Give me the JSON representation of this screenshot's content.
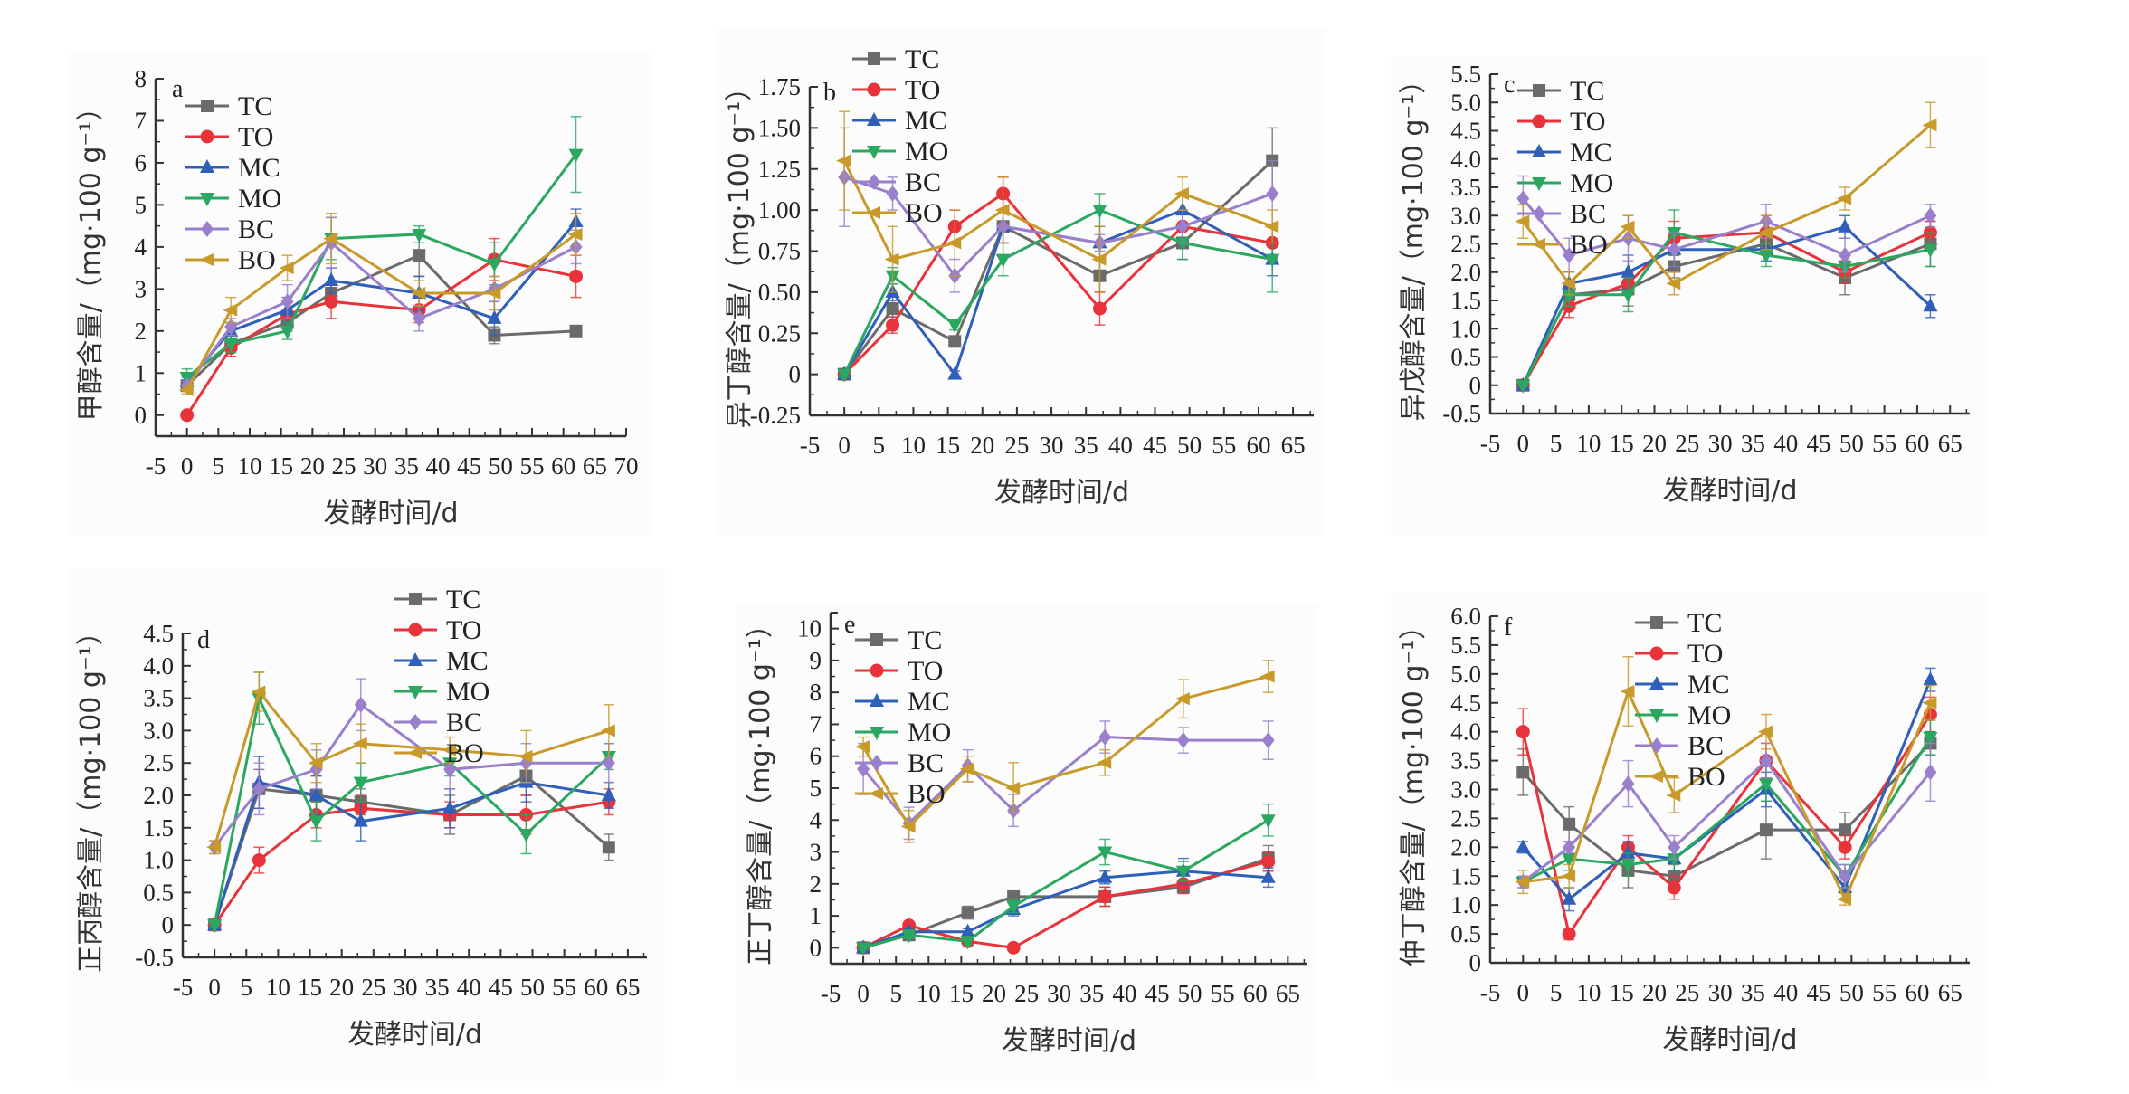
{
  "figure": {
    "x_label": "发酵时间/d",
    "series_names": [
      "TC",
      "TO",
      "MC",
      "MO",
      "BC",
      "BO"
    ],
    "series_colors": {
      "TC": "#6b6b6b",
      "TO": "#e8333a",
      "MC": "#2f5fb8",
      "MO": "#2aa860",
      "BC": "#9a7fcc",
      "BO": "#c89a2a"
    },
    "series_markers": {
      "TC": "square",
      "TO": "circle",
      "MC": "triangle-up",
      "MO": "triangle-down",
      "BC": "diamond",
      "BO": "triangle-left"
    }
  },
  "chart_data": [
    {
      "id": "a",
      "type": "line",
      "panel_label": "a",
      "ylabel": "甲醇含量/（mg·100 g⁻¹）",
      "xlabel": "发酵时间/d",
      "xlim": [
        -5,
        70
      ],
      "xticks": [
        -5,
        0,
        5,
        10,
        15,
        20,
        25,
        30,
        35,
        40,
        45,
        50,
        55,
        60,
        65,
        70
      ],
      "ylim": [
        -0.5,
        8
      ],
      "yticks": [
        0,
        1,
        2,
        3,
        4,
        5,
        6,
        7,
        8
      ],
      "ytick_labels": [
        "0",
        "1",
        "2",
        "3",
        "4",
        "5",
        "6",
        "7",
        "8"
      ],
      "legend_position": "top-left",
      "x": [
        0,
        7,
        16,
        23,
        37,
        49,
        62
      ],
      "series": [
        {
          "name": "TC",
          "values": [
            0.7,
            1.7,
            2.2,
            2.9,
            3.8,
            1.9,
            2.0
          ],
          "errors": [
            0.1,
            0.2,
            0.2,
            0.2,
            0.5,
            0.2,
            0.1
          ]
        },
        {
          "name": "TO",
          "values": [
            0.0,
            1.6,
            2.4,
            2.7,
            2.5,
            3.7,
            3.3
          ],
          "errors": [
            0.05,
            0.2,
            0.3,
            0.4,
            0.3,
            0.5,
            0.5
          ]
        },
        {
          "name": "MC",
          "values": [
            0.8,
            2.0,
            2.5,
            3.2,
            2.9,
            2.3,
            4.6
          ],
          "errors": [
            0.1,
            0.2,
            0.3,
            0.3,
            0.4,
            0.4,
            0.3
          ]
        },
        {
          "name": "MO",
          "values": [
            0.9,
            1.7,
            2.0,
            4.2,
            4.3,
            3.6,
            6.2
          ],
          "errors": [
            0.2,
            0.2,
            0.2,
            0.5,
            0.2,
            0.5,
            0.9
          ]
        },
        {
          "name": "BC",
          "values": [
            0.7,
            2.1,
            2.7,
            4.1,
            2.3,
            3.0,
            4.0
          ],
          "errors": [
            0.1,
            0.2,
            0.4,
            0.6,
            0.3,
            0.3,
            0.4
          ]
        },
        {
          "name": "BO",
          "values": [
            0.6,
            2.5,
            3.5,
            4.2,
            2.9,
            2.9,
            4.3
          ],
          "errors": [
            0.1,
            0.3,
            0.3,
            0.6,
            0.3,
            0.4,
            0.5
          ]
        }
      ]
    },
    {
      "id": "b",
      "type": "line",
      "panel_label": "b",
      "ylabel": "异丁醇含量/（mg·100 g⁻¹）",
      "xlabel": "发酵时间/d",
      "xlim": [
        -5,
        68
      ],
      "xticks": [
        -5,
        0,
        5,
        10,
        15,
        20,
        25,
        30,
        35,
        40,
        45,
        50,
        55,
        60,
        65
      ],
      "ylim": [
        -0.25,
        1.75
      ],
      "yticks": [
        -0.25,
        0,
        0.25,
        0.5,
        0.75,
        1.0,
        1.25,
        1.5,
        1.75
      ],
      "ytick_labels": [
        "-0.25",
        "0",
        "0.25",
        "0.50",
        "0.75",
        "1.00",
        "1.25",
        "1.50",
        "1.75"
      ],
      "legend_position": "top-center",
      "x": [
        0,
        7,
        16,
        23,
        37,
        49,
        62
      ],
      "series": [
        {
          "name": "TC",
          "values": [
            0.0,
            0.4,
            0.2,
            0.9,
            0.6,
            0.8,
            1.3
          ],
          "errors": [
            0.02,
            0.05,
            0.03,
            0.1,
            0.1,
            0.1,
            0.2
          ]
        },
        {
          "name": "TO",
          "values": [
            0.0,
            0.3,
            0.9,
            1.1,
            0.4,
            0.9,
            0.8
          ],
          "errors": [
            0.02,
            0.05,
            0.1,
            0.1,
            0.1,
            0.1,
            0.1
          ]
        },
        {
          "name": "MC",
          "values": [
            0.0,
            0.5,
            0.0,
            0.9,
            0.8,
            1.0,
            0.7
          ],
          "errors": [
            0.02,
            0.05,
            0.02,
            0.1,
            0.1,
            0.1,
            0.1
          ]
        },
        {
          "name": "MO",
          "values": [
            0.0,
            0.6,
            0.3,
            0.7,
            1.0,
            0.8,
            0.7
          ],
          "errors": [
            0.02,
            0.05,
            0.03,
            0.1,
            0.1,
            0.1,
            0.2
          ]
        },
        {
          "name": "BC",
          "values": [
            1.2,
            1.1,
            0.6,
            0.9,
            0.8,
            0.9,
            1.1
          ],
          "errors": [
            0.3,
            0.1,
            0.1,
            0.1,
            0.05,
            0.1,
            0.2
          ]
        },
        {
          "name": "BO",
          "values": [
            1.3,
            0.7,
            0.8,
            1.0,
            0.7,
            1.1,
            0.9
          ],
          "errors": [
            0.3,
            0.2,
            0.2,
            0.2,
            0.2,
            0.1,
            0.1
          ]
        }
      ]
    },
    {
      "id": "c",
      "type": "line",
      "panel_label": "c",
      "ylabel": "异戊醇含量/（mg·100 g⁻¹）",
      "xlabel": "发酵时间/d",
      "xlim": [
        -5,
        68
      ],
      "xticks": [
        -5,
        0,
        5,
        10,
        15,
        20,
        25,
        30,
        35,
        40,
        45,
        50,
        55,
        60,
        65
      ],
      "ylim": [
        -0.5,
        5.5
      ],
      "yticks": [
        -0.5,
        0,
        0.5,
        1.0,
        1.5,
        2.0,
        2.5,
        3.0,
        3.5,
        4.0,
        4.5,
        5.0,
        5.5
      ],
      "ytick_labels": [
        "-0.5",
        "0",
        "0.5",
        "1.0",
        "1.5",
        "2.0",
        "2.5",
        "3.0",
        "3.5",
        "4.0",
        "4.5",
        "5.0",
        "5.5"
      ],
      "legend_position": "top-left",
      "x": [
        0,
        7,
        16,
        23,
        37,
        49,
        62
      ],
      "series": [
        {
          "name": "TC",
          "values": [
            0.0,
            1.6,
            1.7,
            2.1,
            2.5,
            1.9,
            2.5
          ],
          "errors": [
            0.02,
            0.2,
            0.3,
            0.2,
            0.2,
            0.3,
            0.4
          ]
        },
        {
          "name": "TO",
          "values": [
            0.0,
            1.4,
            1.8,
            2.6,
            2.7,
            2.0,
            2.7
          ],
          "errors": [
            0.02,
            0.2,
            0.2,
            0.3,
            0.3,
            0.2,
            0.2
          ]
        },
        {
          "name": "MC",
          "values": [
            0.0,
            1.8,
            2.0,
            2.4,
            2.4,
            2.8,
            1.4
          ],
          "errors": [
            0.02,
            0.2,
            0.3,
            0.3,
            0.2,
            0.2,
            0.2
          ]
        },
        {
          "name": "MO",
          "values": [
            0.0,
            1.6,
            1.6,
            2.7,
            2.3,
            2.1,
            2.4
          ],
          "errors": [
            0.02,
            0.2,
            0.3,
            0.4,
            0.2,
            0.2,
            0.3
          ]
        },
        {
          "name": "BC",
          "values": [
            3.3,
            2.3,
            2.6,
            2.4,
            2.9,
            2.3,
            3.0
          ],
          "errors": [
            0.4,
            0.3,
            0.4,
            0.3,
            0.3,
            0.3,
            0.2
          ]
        },
        {
          "name": "BO",
          "values": [
            2.9,
            1.8,
            2.8,
            1.8,
            2.7,
            3.3,
            4.6
          ],
          "errors": [
            0.3,
            0.2,
            0.2,
            0.2,
            0.3,
            0.2,
            0.4
          ]
        }
      ]
    },
    {
      "id": "d",
      "type": "line",
      "panel_label": "d",
      "ylabel": "正丙醇含量/（mg·100 g⁻¹）",
      "xlabel": "发酵时间/d",
      "xlim": [
        -5,
        68
      ],
      "xticks": [
        -5,
        0,
        5,
        10,
        15,
        20,
        25,
        30,
        35,
        40,
        45,
        50,
        55,
        60,
        65
      ],
      "ylim": [
        -0.5,
        4.5
      ],
      "yticks": [
        -0.5,
        0,
        0.5,
        1.0,
        1.5,
        2.0,
        2.5,
        3.0,
        3.5,
        4.0,
        4.5
      ],
      "ytick_labels": [
        "-0.5",
        "0",
        "0.5",
        "1.0",
        "1.5",
        "2.0",
        "2.5",
        "3.0",
        "3.5",
        "4.0",
        "4.5"
      ],
      "legend_position": "top-right",
      "x": [
        0,
        7,
        16,
        23,
        37,
        49,
        62
      ],
      "series": [
        {
          "name": "TC",
          "values": [
            0.0,
            2.1,
            2.0,
            1.9,
            1.7,
            2.3,
            1.2
          ],
          "errors": [
            0.02,
            0.3,
            0.3,
            0.2,
            0.3,
            0.3,
            0.2
          ]
        },
        {
          "name": "TO",
          "values": [
            0.0,
            1.0,
            1.7,
            1.8,
            1.7,
            1.7,
            1.9
          ],
          "errors": [
            0.02,
            0.2,
            0.2,
            0.2,
            0.2,
            0.3,
            0.2
          ]
        },
        {
          "name": "MC",
          "values": [
            0.0,
            2.2,
            2.0,
            1.6,
            1.8,
            2.2,
            2.0
          ],
          "errors": [
            0.02,
            0.4,
            0.3,
            0.3,
            0.3,
            0.3,
            0.2
          ]
        },
        {
          "name": "MO",
          "values": [
            0.0,
            3.5,
            1.6,
            2.2,
            2.5,
            1.4,
            2.6
          ],
          "errors": [
            0.02,
            0.4,
            0.3,
            0.3,
            0.2,
            0.3,
            0.2
          ]
        },
        {
          "name": "BC",
          "values": [
            1.2,
            2.1,
            2.4,
            3.4,
            2.4,
            2.5,
            2.5
          ],
          "errors": [
            0.1,
            0.4,
            0.3,
            0.4,
            0.3,
            0.3,
            0.3
          ]
        },
        {
          "name": "BO",
          "values": [
            1.2,
            3.6,
            2.5,
            2.8,
            2.7,
            2.6,
            3.0
          ],
          "errors": [
            0.1,
            0.3,
            0.3,
            0.3,
            0.2,
            0.4,
            0.4
          ]
        }
      ]
    },
    {
      "id": "e",
      "type": "line",
      "panel_label": "e",
      "ylabel": "正丁醇含量/（mg·100 g⁻¹）",
      "xlabel": "发酵时间/d",
      "xlim": [
        -5,
        68
      ],
      "xticks": [
        -5,
        0,
        5,
        10,
        15,
        20,
        25,
        30,
        35,
        40,
        45,
        50,
        55,
        60,
        65
      ],
      "ylim": [
        -0.5,
        10.5
      ],
      "yticks": [
        0,
        1,
        2,
        3,
        4,
        5,
        6,
        7,
        8,
        9,
        10
      ],
      "ytick_labels": [
        "0",
        "1",
        "2",
        "3",
        "4",
        "5",
        "6",
        "7",
        "8",
        "9",
        "10"
      ],
      "legend_position": "top-left",
      "x": [
        0,
        7,
        16,
        23,
        37,
        49,
        62
      ],
      "series": [
        {
          "name": "TC",
          "values": [
            0.0,
            0.4,
            1.1,
            1.6,
            1.6,
            1.9,
            2.8
          ],
          "errors": [
            0.05,
            0.1,
            0.2,
            0.1,
            0.3,
            0.2,
            0.4
          ]
        },
        {
          "name": "TO",
          "values": [
            0.0,
            0.7,
            0.2,
            0.0,
            1.6,
            2.0,
            2.7
          ],
          "errors": [
            0.05,
            0.1,
            0.1,
            0.05,
            0.3,
            0.3,
            0.3
          ]
        },
        {
          "name": "MC",
          "values": [
            0.0,
            0.5,
            0.5,
            1.2,
            2.2,
            2.4,
            2.2
          ],
          "errors": [
            0.05,
            0.1,
            0.1,
            0.2,
            0.2,
            0.4,
            0.3
          ]
        },
        {
          "name": "MO",
          "values": [
            0.0,
            0.4,
            0.2,
            1.3,
            3.0,
            2.4,
            4.0
          ],
          "errors": [
            0.05,
            0.1,
            0.1,
            0.2,
            0.4,
            0.3,
            0.5
          ]
        },
        {
          "name": "BC",
          "values": [
            5.6,
            3.9,
            5.7,
            4.3,
            6.6,
            6.5,
            6.5
          ],
          "errors": [
            0.8,
            0.5,
            0.5,
            0.5,
            0.5,
            0.4,
            0.6
          ]
        },
        {
          "name": "BO",
          "values": [
            6.3,
            3.8,
            5.6,
            5.0,
            5.8,
            7.8,
            8.5
          ],
          "errors": [
            0.3,
            0.5,
            0.4,
            0.8,
            0.4,
            0.6,
            0.5
          ]
        }
      ]
    },
    {
      "id": "f",
      "type": "line",
      "panel_label": "f",
      "ylabel": "仲丁醇含量/（mg·100 g⁻¹）",
      "xlabel": "发酵时间/d",
      "xlim": [
        -5,
        68
      ],
      "xticks": [
        -5,
        0,
        5,
        10,
        15,
        20,
        25,
        30,
        35,
        40,
        45,
        50,
        55,
        60,
        65
      ],
      "ylim": [
        0,
        6.0
      ],
      "yticks": [
        0,
        0.5,
        1.0,
        1.5,
        2.0,
        2.5,
        3.0,
        3.5,
        4.0,
        4.5,
        5.0,
        5.5,
        6.0
      ],
      "ytick_labels": [
        "0",
        "0.5",
        "1.0",
        "1.5",
        "2.0",
        "2.5",
        "3.0",
        "3.5",
        "4.0",
        "4.5",
        "5.0",
        "5.5",
        "6.0"
      ],
      "legend_position": "top-center",
      "x": [
        0,
        7,
        16,
        23,
        37,
        49,
        62
      ],
      "series": [
        {
          "name": "TC",
          "values": [
            3.3,
            2.4,
            1.6,
            1.5,
            2.3,
            2.3,
            3.8
          ],
          "errors": [
            0.4,
            0.3,
            0.3,
            0.2,
            0.5,
            0.3,
            0.2
          ]
        },
        {
          "name": "TO",
          "values": [
            4.0,
            0.5,
            2.0,
            1.3,
            3.5,
            2.0,
            4.3
          ],
          "errors": [
            0.4,
            0.1,
            0.2,
            0.2,
            0.3,
            0.2,
            0.3
          ]
        },
        {
          "name": "MC",
          "values": [
            2.0,
            1.1,
            1.9,
            1.8,
            3.0,
            1.3,
            4.9
          ],
          "errors": [
            0.1,
            0.2,
            0.2,
            0.2,
            0.3,
            0.2,
            0.2
          ]
        },
        {
          "name": "MO",
          "values": [
            1.4,
            1.8,
            1.7,
            1.8,
            3.1,
            1.5,
            3.9
          ],
          "errors": [
            0.1,
            0.2,
            0.2,
            0.2,
            0.3,
            0.2,
            0.3
          ]
        },
        {
          "name": "BC",
          "values": [
            1.4,
            2.0,
            3.1,
            2.0,
            3.5,
            1.5,
            3.3
          ],
          "errors": [
            0.1,
            0.1,
            0.4,
            0.2,
            0.3,
            0.2,
            0.5
          ]
        },
        {
          "name": "BO",
          "values": [
            1.4,
            1.5,
            4.7,
            2.9,
            4.0,
            1.1,
            4.5
          ],
          "errors": [
            0.2,
            0.2,
            0.6,
            0.3,
            0.3,
            0.1,
            0.3
          ]
        }
      ]
    }
  ]
}
